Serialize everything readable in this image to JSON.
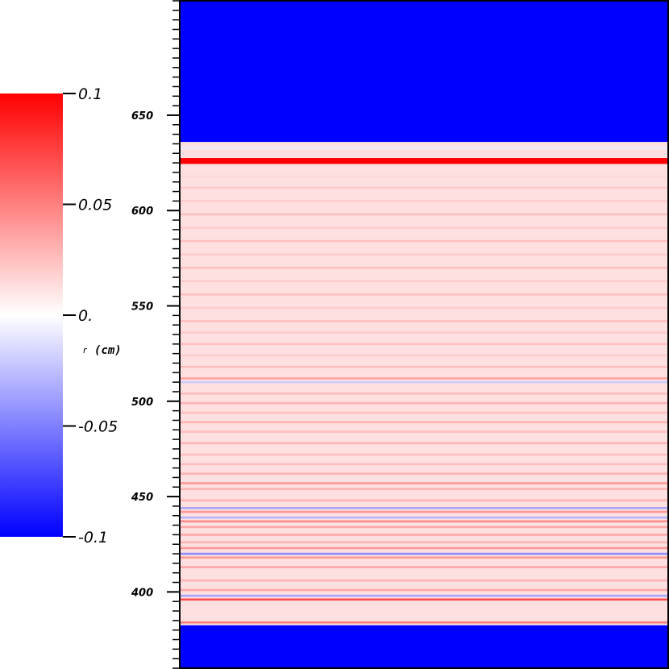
{
  "chart_data": {
    "type": "heatmap",
    "title": "",
    "xlabel": "",
    "ylabel": "",
    "ylim": [
      360,
      710
    ],
    "y_ticks": [
      400,
      450,
      500,
      550,
      600,
      650
    ],
    "y_tick_labels": [
      "400",
      "450",
      "500",
      "550",
      "600",
      "650"
    ],
    "y_minor_step": 5,
    "colorbar": {
      "variable": "r",
      "unit": "(cm)",
      "range": [
        -0.1,
        0.1
      ],
      "tick_values": [
        -0.1,
        -0.05,
        0,
        0.05,
        0.1
      ],
      "tick_labels": [
        "-0.1",
        "-0.05",
        "0.",
        "0.05",
        "0.1"
      ],
      "colormap": [
        "#0000ff",
        "#ffffff",
        "#ff0000"
      ]
    },
    "background_value": -0.1,
    "active_region": [
      382.5,
      636
    ],
    "layers": [
      {
        "y": 626,
        "value": 0.1
      },
      {
        "y": 625,
        "value": 0.1
      },
      {
        "y": 627,
        "value": 0.1
      },
      {
        "y": 633,
        "value": -0.008
      },
      {
        "y": 396,
        "value": 0.07
      },
      {
        "y": 384,
        "value": 0.05
      },
      {
        "y": 398,
        "value": -0.035
      },
      {
        "y": 401,
        "value": 0.035
      },
      {
        "y": 406,
        "value": 0.03
      },
      {
        "y": 413,
        "value": 0.035
      },
      {
        "y": 418,
        "value": 0.04
      },
      {
        "y": 420,
        "value": -0.045
      },
      {
        "y": 423,
        "value": 0.04
      },
      {
        "y": 426,
        "value": 0.03
      },
      {
        "y": 430,
        "value": 0.035
      },
      {
        "y": 434,
        "value": 0.035
      },
      {
        "y": 437,
        "value": 0.045
      },
      {
        "y": 439,
        "value": -0.03
      },
      {
        "y": 442,
        "value": 0.04
      },
      {
        "y": 444,
        "value": -0.035
      },
      {
        "y": 448,
        "value": 0.03
      },
      {
        "y": 454,
        "value": 0.03
      },
      {
        "y": 457,
        "value": 0.04
      },
      {
        "y": 462,
        "value": 0.03
      },
      {
        "y": 467,
        "value": 0.025
      },
      {
        "y": 472,
        "value": 0.025
      },
      {
        "y": 478,
        "value": 0.03
      },
      {
        "y": 484,
        "value": 0.025
      },
      {
        "y": 489,
        "value": 0.03
      },
      {
        "y": 494,
        "value": 0.025
      },
      {
        "y": 499,
        "value": 0.03
      },
      {
        "y": 504,
        "value": 0.025
      },
      {
        "y": 510,
        "value": -0.02
      },
      {
        "y": 512,
        "value": 0.035
      },
      {
        "y": 518,
        "value": 0.025
      },
      {
        "y": 524,
        "value": 0.02
      },
      {
        "y": 530,
        "value": 0.025
      },
      {
        "y": 536,
        "value": 0.02
      },
      {
        "y": 542,
        "value": 0.025
      },
      {
        "y": 549,
        "value": 0.02
      },
      {
        "y": 556,
        "value": 0.025
      },
      {
        "y": 563,
        "value": 0.02
      },
      {
        "y": 570,
        "value": 0.025
      },
      {
        "y": 577,
        "value": 0.02
      },
      {
        "y": 584,
        "value": 0.025
      },
      {
        "y": 591,
        "value": 0.02
      },
      {
        "y": 598,
        "value": 0.025
      },
      {
        "y": 605,
        "value": 0.02
      },
      {
        "y": 612,
        "value": 0.02
      },
      {
        "y": 618,
        "value": 0.015
      }
    ]
  }
}
